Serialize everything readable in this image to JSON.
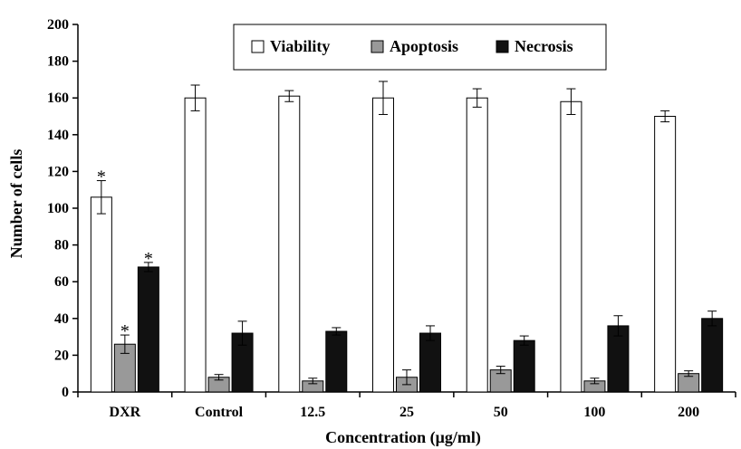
{
  "chart_data": {
    "type": "bar",
    "title": "",
    "xlabel": "Concentration (μg/ml)",
    "ylabel": "Number of cells",
    "ylim": [
      0,
      200
    ],
    "yticks": [
      "0",
      "20",
      "40",
      "60",
      "80",
      "100",
      "120",
      "140",
      "160",
      "180",
      "200"
    ],
    "categories": [
      "DXR",
      "Control",
      "12.5",
      "25",
      "50",
      "100",
      "200"
    ],
    "legend_position": "top-center",
    "grid": false,
    "series": [
      {
        "name": "Viability",
        "color": "#ffffff",
        "values": [
          106,
          160,
          161,
          160,
          160,
          158,
          150
        ],
        "errors": [
          9,
          7,
          3,
          9,
          5,
          7,
          3
        ],
        "significance": [
          "*",
          "",
          "",
          "",
          "",
          "",
          ""
        ]
      },
      {
        "name": "Apoptosis",
        "color": "#999999",
        "values": [
          26,
          8,
          6,
          8,
          12,
          6,
          10
        ],
        "errors": [
          5,
          1.5,
          1.5,
          4,
          2,
          1.5,
          1.5
        ],
        "significance": [
          "*",
          "",
          "",
          "",
          "",
          "",
          ""
        ]
      },
      {
        "name": "Necrosis",
        "color": "#111111",
        "values": [
          68,
          32,
          33,
          32,
          28,
          36,
          40
        ],
        "errors": [
          2.5,
          6.5,
          2,
          4,
          2.5,
          5.5,
          4
        ],
        "significance": [
          "*",
          "",
          "",
          "",
          "",
          "",
          ""
        ]
      }
    ]
  }
}
